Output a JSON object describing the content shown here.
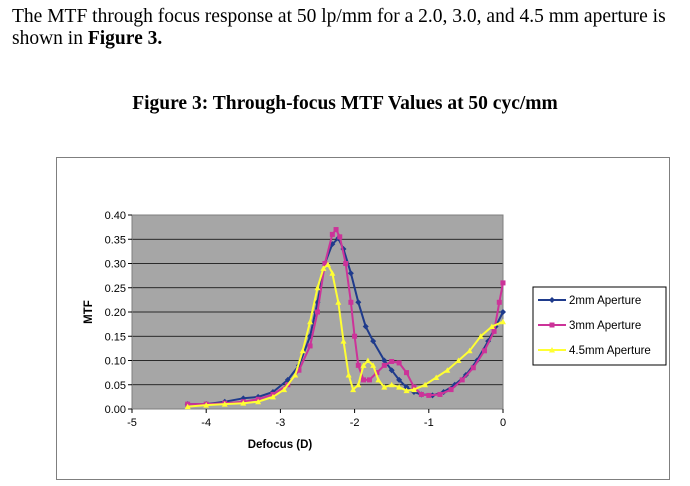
{
  "intro": {
    "part1": "The MTF through focus response at 50 lp/mm for a 2.0, 3.0, and 4.5 mm aperture is shown in ",
    "part2": "Figure 3."
  },
  "figure_title": "Figure 3: Through-focus MTF Values at 50 cyc/mm",
  "chart_data": {
    "type": "line",
    "xlabel": "Defocus (D)",
    "ylabel": "MTF",
    "xlim": [
      -5,
      0
    ],
    "ylim": [
      0,
      0.4
    ],
    "xticks": [
      "-5",
      "-4",
      "-3",
      "-2",
      "-1",
      "0"
    ],
    "yticks": [
      "0.00",
      "0.05",
      "0.10",
      "0.15",
      "0.20",
      "0.25",
      "0.30",
      "0.35",
      "0.40"
    ],
    "grid": "horizontal",
    "plot_background": "#a6a6a6",
    "legend_position": "right",
    "series": [
      {
        "name": "2mm Aperture",
        "color": "#1f3b8c",
        "marker": "diamond",
        "points": [
          [
            -4.25,
            0.01
          ],
          [
            -4.0,
            0.01
          ],
          [
            -3.75,
            0.015
          ],
          [
            -3.5,
            0.022
          ],
          [
            -3.3,
            0.025
          ],
          [
            -3.1,
            0.035
          ],
          [
            -2.9,
            0.06
          ],
          [
            -2.75,
            0.09
          ],
          [
            -2.6,
            0.15
          ],
          [
            -2.5,
            0.22
          ],
          [
            -2.4,
            0.3
          ],
          [
            -2.3,
            0.34
          ],
          [
            -2.22,
            0.352
          ],
          [
            -2.15,
            0.33
          ],
          [
            -2.05,
            0.28
          ],
          [
            -1.95,
            0.22
          ],
          [
            -1.85,
            0.17
          ],
          [
            -1.75,
            0.14
          ],
          [
            -1.6,
            0.1
          ],
          [
            -1.5,
            0.08
          ],
          [
            -1.4,
            0.06
          ],
          [
            -1.3,
            0.045
          ],
          [
            -1.2,
            0.035
          ],
          [
            -1.1,
            0.03
          ],
          [
            -0.95,
            0.028
          ],
          [
            -0.8,
            0.035
          ],
          [
            -0.65,
            0.05
          ],
          [
            -0.5,
            0.07
          ],
          [
            -0.35,
            0.1
          ],
          [
            -0.2,
            0.14
          ],
          [
            -0.1,
            0.17
          ],
          [
            0.0,
            0.2
          ]
        ]
      },
      {
        "name": "3mm Aperture",
        "color": "#cc3399",
        "marker": "square",
        "points": [
          [
            -4.25,
            0.01
          ],
          [
            -4.0,
            0.01
          ],
          [
            -3.75,
            0.012
          ],
          [
            -3.5,
            0.015
          ],
          [
            -3.3,
            0.02
          ],
          [
            -3.1,
            0.03
          ],
          [
            -2.9,
            0.05
          ],
          [
            -2.75,
            0.08
          ],
          [
            -2.6,
            0.13
          ],
          [
            -2.5,
            0.2
          ],
          [
            -2.4,
            0.3
          ],
          [
            -2.3,
            0.36
          ],
          [
            -2.25,
            0.37
          ],
          [
            -2.2,
            0.355
          ],
          [
            -2.12,
            0.3
          ],
          [
            -2.05,
            0.22
          ],
          [
            -2.0,
            0.15
          ],
          [
            -1.95,
            0.09
          ],
          [
            -1.88,
            0.06
          ],
          [
            -1.8,
            0.06
          ],
          [
            -1.7,
            0.075
          ],
          [
            -1.6,
            0.09
          ],
          [
            -1.5,
            0.098
          ],
          [
            -1.4,
            0.095
          ],
          [
            -1.3,
            0.075
          ],
          [
            -1.2,
            0.045
          ],
          [
            -1.1,
            0.03
          ],
          [
            -1.0,
            0.028
          ],
          [
            -0.85,
            0.03
          ],
          [
            -0.7,
            0.04
          ],
          [
            -0.55,
            0.06
          ],
          [
            -0.4,
            0.085
          ],
          [
            -0.25,
            0.12
          ],
          [
            -0.12,
            0.16
          ],
          [
            -0.05,
            0.22
          ],
          [
            0.0,
            0.26
          ]
        ]
      },
      {
        "name": "4.5mm Aperture",
        "color": "#ffff33",
        "marker": "triangle",
        "points": [
          [
            -4.25,
            0.005
          ],
          [
            -4.0,
            0.008
          ],
          [
            -3.75,
            0.01
          ],
          [
            -3.5,
            0.012
          ],
          [
            -3.3,
            0.015
          ],
          [
            -3.1,
            0.025
          ],
          [
            -2.95,
            0.04
          ],
          [
            -2.8,
            0.07
          ],
          [
            -2.7,
            0.12
          ],
          [
            -2.6,
            0.18
          ],
          [
            -2.5,
            0.25
          ],
          [
            -2.42,
            0.29
          ],
          [
            -2.36,
            0.298
          ],
          [
            -2.3,
            0.28
          ],
          [
            -2.22,
            0.22
          ],
          [
            -2.15,
            0.14
          ],
          [
            -2.08,
            0.07
          ],
          [
            -2.02,
            0.04
          ],
          [
            -1.95,
            0.05
          ],
          [
            -1.88,
            0.09
          ],
          [
            -1.82,
            0.1
          ],
          [
            -1.75,
            0.09
          ],
          [
            -1.68,
            0.06
          ],
          [
            -1.6,
            0.045
          ],
          [
            -1.5,
            0.05
          ],
          [
            -1.4,
            0.045
          ],
          [
            -1.3,
            0.038
          ],
          [
            -1.2,
            0.04
          ],
          [
            -1.05,
            0.05
          ],
          [
            -0.9,
            0.065
          ],
          [
            -0.75,
            0.08
          ],
          [
            -0.6,
            0.1
          ],
          [
            -0.45,
            0.12
          ],
          [
            -0.3,
            0.15
          ],
          [
            -0.15,
            0.17
          ],
          [
            0.0,
            0.18
          ]
        ]
      }
    ]
  }
}
